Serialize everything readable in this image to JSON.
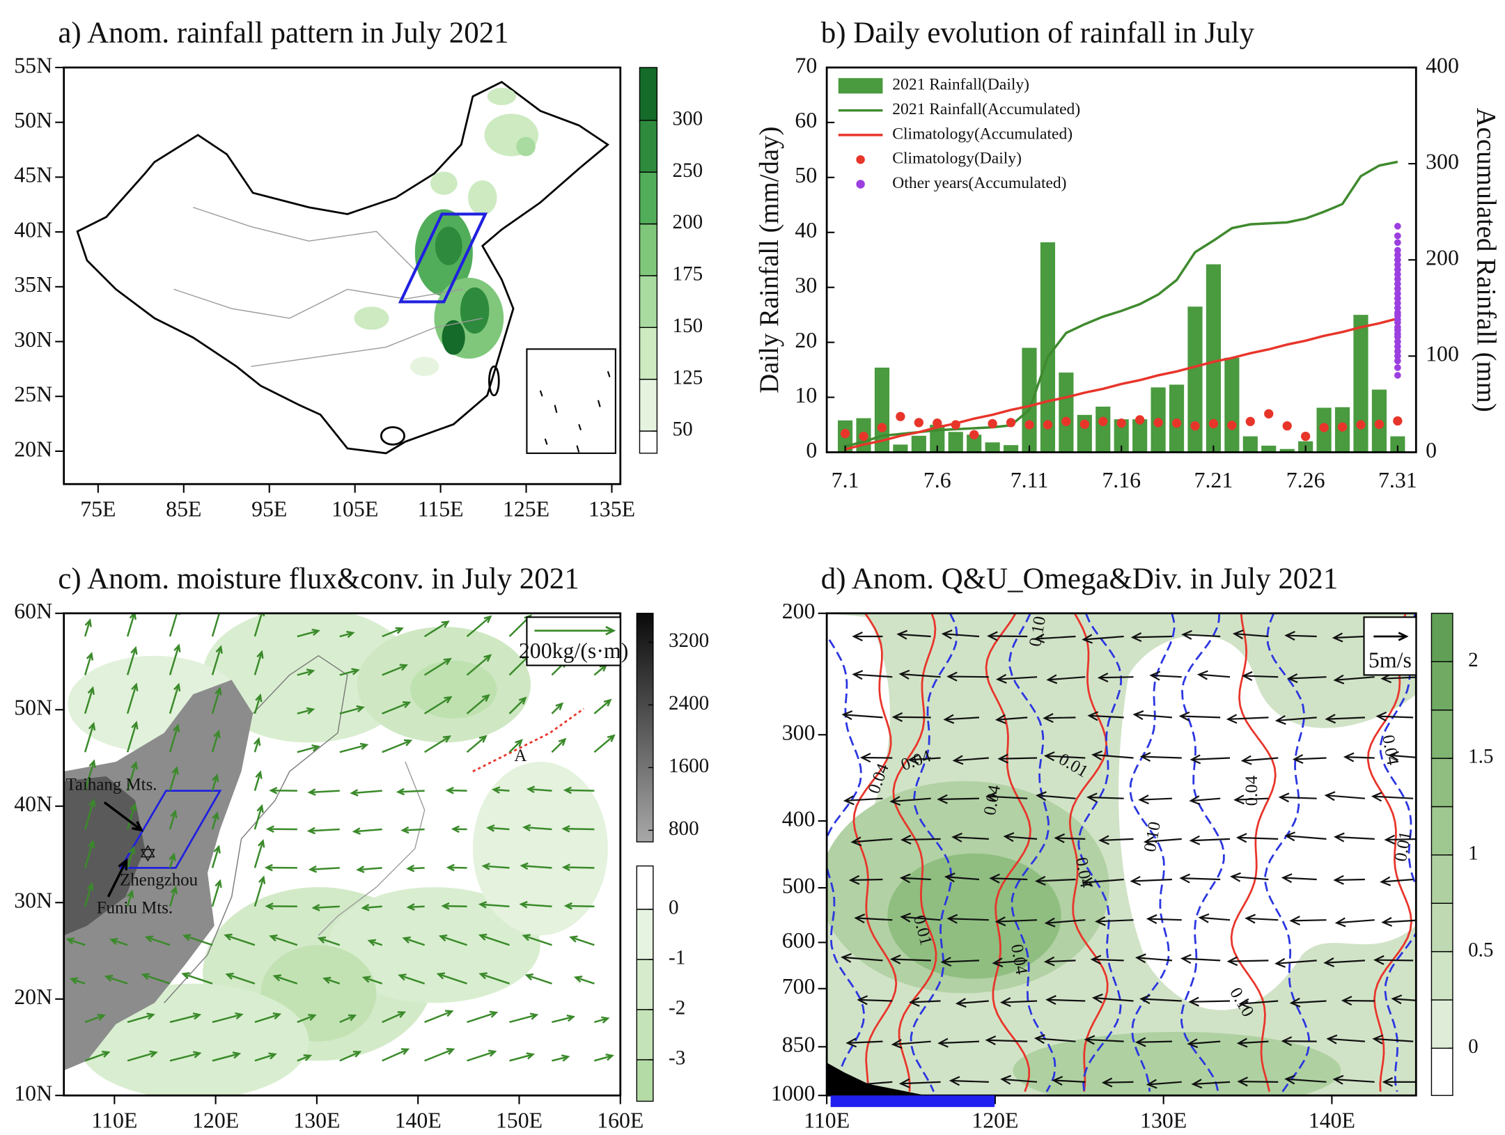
{
  "chart_data": [
    {
      "type": "map",
      "title": "a) Anom. rainfall pattern in July 2021",
      "xlim": [
        71,
        136
      ],
      "ylim": [
        17,
        55
      ],
      "xticks": [
        {
          "value": 75,
          "label": "75E"
        },
        {
          "value": 85,
          "label": "85E"
        },
        {
          "value": 95,
          "label": "95E"
        },
        {
          "value": 105,
          "label": "105E"
        },
        {
          "value": 115,
          "label": "115E"
        },
        {
          "value": 125,
          "label": "125E"
        },
        {
          "value": 135,
          "label": "135E"
        }
      ],
      "yticks": [
        {
          "value": 20,
          "label": "20N"
        },
        {
          "value": 25,
          "label": "25N"
        },
        {
          "value": 30,
          "label": "30N"
        },
        {
          "value": 35,
          "label": "35N"
        },
        {
          "value": 40,
          "label": "40N"
        },
        {
          "value": 45,
          "label": "45N"
        },
        {
          "value": 50,
          "label": "50N"
        },
        {
          "value": 55,
          "label": "55N"
        }
      ],
      "colorbars": [
        {
          "ticks": [
            50,
            125,
            150,
            175,
            200,
            250,
            300
          ],
          "colors": [
            "#ffffff",
            "#e6f4df",
            "#cdeac1",
            "#a9dba0",
            "#80c77c",
            "#52ad5a",
            "#2e8b3d",
            "#156b2a"
          ]
        }
      ]
    },
    {
      "type": "bar",
      "title": "b) Daily evolution of rainfall in July",
      "y_label": "Daily Rainfall (mm/day)",
      "y2_label": "Accumulated Rainfall (mm)",
      "categories": [
        "7.1",
        null,
        null,
        null,
        null,
        "7.6",
        null,
        null,
        null,
        null,
        "7.11",
        null,
        null,
        null,
        null,
        "7.16",
        null,
        null,
        null,
        null,
        "7.21",
        null,
        null,
        null,
        null,
        "7.26",
        null,
        null,
        null,
        null,
        "7.31"
      ],
      "ylim": [
        0,
        70
      ],
      "yticks": [
        0,
        10,
        20,
        30,
        40,
        50,
        60,
        70
      ],
      "y2lim": [
        0,
        400
      ],
      "y2ticks": [
        0,
        100,
        200,
        300,
        400
      ],
      "legend": "upper left",
      "series": [
        {
          "name": "2021 Rainfall(Daily)",
          "type": "bar",
          "color": "#4a9a3f",
          "values": [
            5.8,
            6.2,
            15.4,
            1.4,
            3.0,
            5.0,
            3.7,
            3.2,
            1.8,
            1.3,
            19.0,
            38.2,
            14.5,
            6.8,
            8.3,
            6.0,
            6.0,
            11.8,
            12.3,
            26.5,
            34.2,
            17.2,
            2.9,
            1.2,
            0.6,
            2.0,
            8.1,
            8.2,
            25.0,
            11.4,
            2.9
          ]
        },
        {
          "name": "2021 Rainfall(Accumulated)",
          "type": "line",
          "axis": "y2",
          "color": "#3f8a2e",
          "values": [
            6,
            11,
            17,
            19,
            21,
            23,
            24,
            25,
            26,
            28,
            44,
            99,
            124,
            133,
            141,
            147,
            154,
            164,
            179,
            208,
            220,
            233,
            237,
            238,
            239,
            243,
            250,
            258,
            287,
            298,
            302
          ]
        },
        {
          "name": "Climatology(Accumulated)",
          "type": "line",
          "axis": "y2",
          "color": "#e8352a",
          "values": [
            3,
            8,
            12,
            17,
            21,
            26,
            30,
            35,
            39,
            44,
            48,
            53,
            57,
            62,
            66,
            71,
            75,
            80,
            84,
            89,
            94,
            98,
            103,
            107,
            112,
            116,
            121,
            125,
            130,
            134,
            139
          ]
        },
        {
          "name": "Climatology(Daily)",
          "type": "scatter",
          "color": "#e8352a",
          "values": [
            3.4,
            2.9,
            4.5,
            6.5,
            5.4,
            5.3,
            5.0,
            3.2,
            5.2,
            5.4,
            5.0,
            5.0,
            5.6,
            5.1,
            5.6,
            5.3,
            5.9,
            5.4,
            5.3,
            4.8,
            5.2,
            4.9,
            5.6,
            7.0,
            4.8,
            2.9,
            4.5,
            4.6,
            5.0,
            5.1,
            5.7
          ]
        },
        {
          "name": "Other years(Accumulated)",
          "type": "scatter",
          "axis": "y2",
          "color": "#9b3fe0",
          "x": "7.31",
          "values": [
            80,
            88,
            95,
            100,
            105,
            110,
            115,
            120,
            123,
            127,
            130,
            135,
            138,
            142,
            145,
            150,
            155,
            160,
            165,
            170,
            175,
            180,
            185,
            190,
            195,
            200,
            205,
            210,
            218,
            225,
            235
          ]
        }
      ]
    },
    {
      "type": "map",
      "title": "c) Anom. moisture flux&conv. in July 2021",
      "xlim": [
        105,
        160
      ],
      "ylim": [
        10,
        60
      ],
      "xticks": [
        {
          "value": 110,
          "label": "110E"
        },
        {
          "value": 120,
          "label": "120E"
        },
        {
          "value": 130,
          "label": "130E"
        },
        {
          "value": 140,
          "label": "140E"
        },
        {
          "value": 150,
          "label": "150E"
        },
        {
          "value": 160,
          "label": "160E"
        }
      ],
      "yticks": [
        {
          "value": 10,
          "label": "10N"
        },
        {
          "value": 20,
          "label": "20N"
        },
        {
          "value": 30,
          "label": "30N"
        },
        {
          "value": 40,
          "label": "40N"
        },
        {
          "value": 50,
          "label": "50N"
        },
        {
          "value": 60,
          "label": "60N"
        }
      ],
      "colorbars": [
        {
          "ticks": [
            800,
            1600,
            2400,
            3200
          ],
          "colors": [
            "#a8a8a8",
            "#0a0a0a"
          ]
        },
        {
          "ticks": [
            0,
            -1,
            -2,
            -3
          ],
          "colors": [
            "#ffffff",
            "#e7f3e1",
            "#d6ebcc",
            "#c5e3b8",
            "#b4dba5"
          ]
        }
      ],
      "ref_label": "200kg/(s·m)",
      "annotations": [
        {
          "text": "Taihang Mts.",
          "color": "#111111"
        },
        {
          "text": "Zhengzhou",
          "color": "#a040e0"
        },
        {
          "text": "Funiu Mts.",
          "color": "#111111"
        },
        {
          "text": "A",
          "color": "#2a36e0"
        }
      ]
    },
    {
      "type": "contour",
      "title": "d) Anom. Q&U_Omega&Div. in July 2021",
      "xlim": [
        110,
        145
      ],
      "ylim": [
        1000,
        200
      ],
      "ylog": true,
      "xticks": [
        {
          "value": 110,
          "label": "110E"
        },
        {
          "value": 120,
          "label": "120E"
        },
        {
          "value": 130,
          "label": "130E"
        },
        {
          "value": 140,
          "label": "140E"
        }
      ],
      "yticks": [
        200,
        300,
        400,
        500,
        600,
        700,
        850,
        1000
      ],
      "colorbars": [
        {
          "ticks": [
            0,
            0.5,
            1,
            1.5,
            2
          ],
          "colors": [
            "#ffffff",
            "#dfecd8",
            "#cfe3c5",
            "#bfdab3",
            "#afd1a1",
            "#9fc790",
            "#8fbe80",
            "#7fb471",
            "#70aa63",
            "#619f57"
          ]
        }
      ],
      "ref_label": "5m/s",
      "annotations": [
        {
          "text": "0.10",
          "color": "#2a36e0"
        },
        {
          "text": "0.04",
          "color": "#e8352a"
        },
        {
          "text": "0.04",
          "color": "#e8352a"
        },
        {
          "text": "0.01",
          "color": "#2a36e0"
        },
        {
          "text": "0.04",
          "color": "#e8352a"
        },
        {
          "text": "0.10",
          "color": "#2a36e0"
        },
        {
          "text": "0.04",
          "color": "#e8352a"
        },
        {
          "text": "0.01",
          "color": "#2a36e0"
        },
        {
          "text": "0.04",
          "color": "#e8352a"
        },
        {
          "text": "0.10",
          "color": "#2a36e0"
        },
        {
          "text": "0.04",
          "color": "#e8352a"
        },
        {
          "text": "0.04",
          "color": "#e8352a"
        },
        {
          "text": "0.01",
          "color": "#2a36e0"
        }
      ]
    }
  ]
}
